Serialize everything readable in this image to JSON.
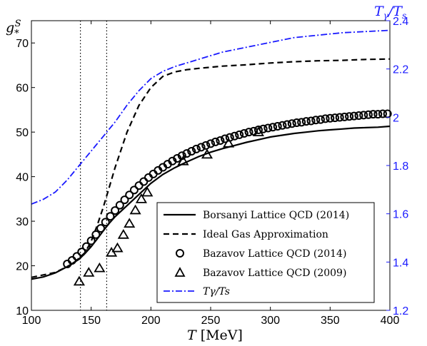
{
  "chart_data": {
    "type": "line",
    "x_label": "T",
    "x_unit": "[MeV]",
    "y_left_label": "g*S",
    "y_right_label": "Tγ/Ts",
    "xlim": [
      100,
      400
    ],
    "ylim_left": [
      10,
      75
    ],
    "ylim_right": [
      1.2,
      2.4
    ],
    "x_ticks": [
      "100",
      "150",
      "200",
      "250",
      "300",
      "350",
      "400"
    ],
    "y_left_ticks": [
      "10",
      "20",
      "30",
      "40",
      "50",
      "60",
      "70"
    ],
    "y_right_ticks": [
      "1.2",
      "1.4",
      "1.6",
      "1.8",
      "2",
      "2.2",
      "2.4"
    ],
    "vertical_dotted_lines_x": [
      141,
      163
    ],
    "legend_position": "lower-right",
    "series": [
      {
        "name": "Borsanyi Lattice QCD (2014)",
        "axis": "left",
        "style": "solid",
        "color": "#000000",
        "x": [
          100,
          110,
          120,
          130,
          140,
          145,
          150,
          155,
          160,
          165,
          170,
          180,
          190,
          200,
          210,
          220,
          230,
          240,
          250,
          260,
          270,
          280,
          290,
          300,
          310,
          320,
          330,
          340,
          350,
          360,
          370,
          380,
          390,
          400
        ],
        "y": [
          17.0,
          17.5,
          18.4,
          19.8,
          21.5,
          22.8,
          24.3,
          26.0,
          27.8,
          29.5,
          31.0,
          33.5,
          36.0,
          38.5,
          40.5,
          42.0,
          43.3,
          44.5,
          45.5,
          46.3,
          47.0,
          47.7,
          48.3,
          48.9,
          49.3,
          49.7,
          50.0,
          50.3,
          50.5,
          50.7,
          50.9,
          51.0,
          51.1,
          51.3
        ]
      },
      {
        "name": "Ideal Gas Approximation",
        "axis": "left",
        "style": "dashed",
        "color": "#000000",
        "x": [
          100,
          120,
          135,
          145,
          150,
          155,
          160,
          165,
          170,
          180,
          190,
          200,
          210,
          220,
          230,
          240,
          260,
          280,
          300,
          320,
          340,
          360,
          380,
          400
        ],
        "y": [
          17.4,
          18.5,
          20.5,
          23.0,
          25.5,
          29.0,
          33.0,
          37.5,
          42.0,
          50.0,
          56.0,
          60.0,
          62.5,
          63.5,
          64.0,
          64.3,
          64.8,
          65.1,
          65.5,
          65.8,
          66.0,
          66.1,
          66.3,
          66.4
        ]
      },
      {
        "name": "Bazavov Lattice QCD (2014)",
        "axis": "left",
        "style": "circle-markers",
        "color": "#000000",
        "x": [
          130,
          134,
          138,
          142,
          146,
          150,
          154,
          158,
          162,
          166,
          170,
          174,
          178,
          182,
          186,
          190,
          194,
          198,
          202,
          206,
          210,
          214,
          218,
          222,
          226,
          230,
          234,
          238,
          242,
          246,
          250,
          254,
          258,
          262,
          266,
          270,
          274,
          278,
          282,
          286,
          290,
          294,
          298,
          302,
          306,
          310,
          314,
          318,
          322,
          326,
          330,
          334,
          338,
          342,
          346,
          350,
          354,
          358,
          362,
          366,
          370,
          374,
          378,
          382,
          386,
          390,
          394,
          398
        ],
        "y": [
          20.4,
          21.2,
          22.1,
          23.1,
          24.3,
          25.6,
          27.0,
          28.4,
          29.8,
          31.1,
          32.4,
          33.6,
          34.8,
          35.9,
          37.0,
          38.0,
          38.9,
          39.8,
          40.6,
          41.4,
          42.1,
          42.8,
          43.5,
          44.1,
          44.7,
          45.2,
          45.7,
          46.2,
          46.6,
          47.0,
          47.4,
          47.8,
          48.1,
          48.5,
          48.8,
          49.1,
          49.4,
          49.7,
          50.0,
          50.2,
          50.5,
          50.7,
          50.9,
          51.1,
          51.3,
          51.5,
          51.7,
          51.9,
          52.1,
          52.2,
          52.4,
          52.5,
          52.7,
          52.8,
          53.0,
          53.1,
          53.2,
          53.3,
          53.4,
          53.5,
          53.6,
          53.7,
          53.8,
          53.9,
          54.0,
          54.0,
          54.1,
          54.1
        ]
      },
      {
        "name": "Bazavov Lattice QCD (2009)",
        "axis": "left",
        "style": "triangle-markers",
        "color": "#000000",
        "x": [
          140,
          148,
          157,
          167,
          172,
          177,
          182,
          187,
          192,
          197,
          227,
          247,
          265,
          290
        ],
        "y": [
          16.5,
          18.5,
          19.5,
          23.0,
          24.0,
          27.0,
          29.5,
          32.5,
          35.0,
          36.5,
          43.5,
          45.0,
          47.5,
          50.0
        ]
      },
      {
        "name": "Tγ/Ts",
        "axis": "right",
        "style": "dash-dot",
        "color": "#1a1aff",
        "x": [
          100,
          110,
          120,
          130,
          140,
          150,
          160,
          170,
          180,
          190,
          200,
          210,
          220,
          240,
          260,
          280,
          300,
          320,
          340,
          360,
          380,
          400
        ],
        "y": [
          1.64,
          1.66,
          1.69,
          1.74,
          1.8,
          1.86,
          1.92,
          1.98,
          2.05,
          2.11,
          2.16,
          2.19,
          2.21,
          2.24,
          2.27,
          2.29,
          2.31,
          2.33,
          2.34,
          2.35,
          2.355,
          2.36
        ]
      }
    ]
  }
}
